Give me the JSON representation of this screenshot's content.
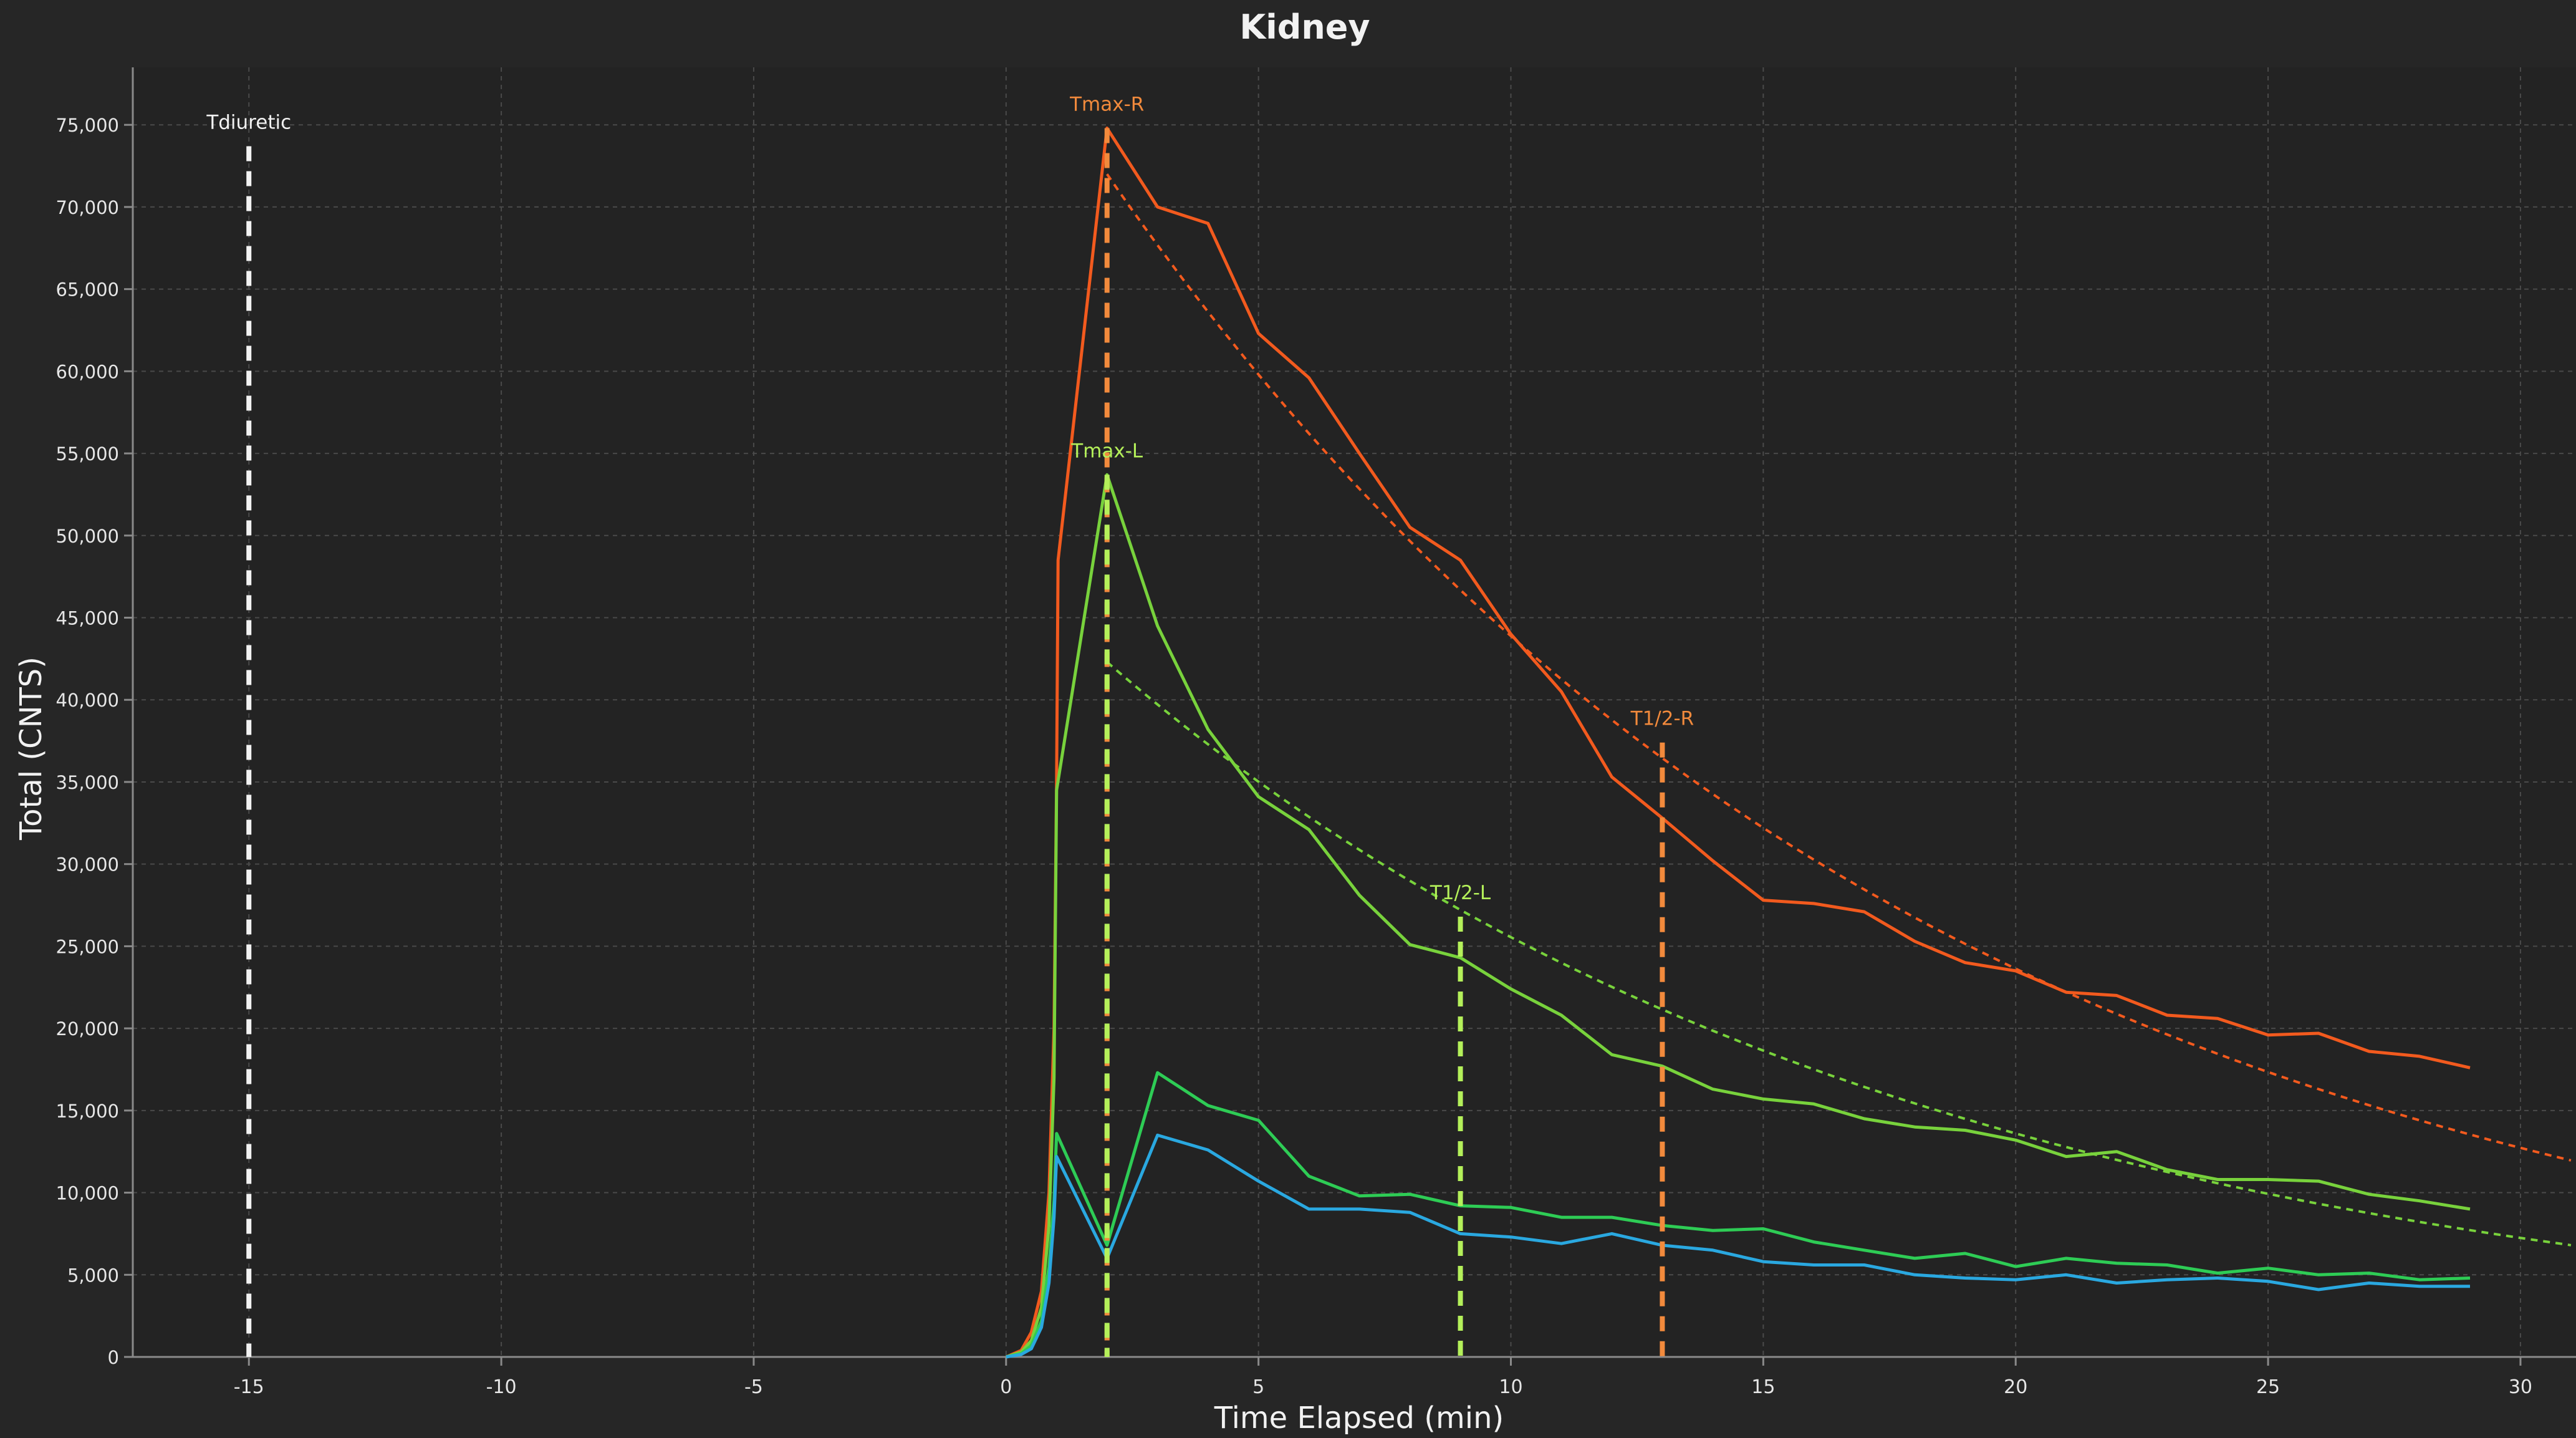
{
  "chart_data": {
    "type": "line",
    "title": "Kidney",
    "xlabel": "Time Elapsed (min)",
    "ylabel": "Total (CNTS)",
    "xlim": [
      -17.3,
      31.1
    ],
    "ylim": [
      0,
      78500
    ],
    "x_ticks": [
      -15,
      -10,
      -5,
      0,
      5,
      10,
      15,
      20,
      25,
      30
    ],
    "x_tick_labels": [
      "-15",
      "-10",
      "-5",
      "0",
      "5",
      "10",
      "15",
      "20",
      "25",
      "30"
    ],
    "y_ticks": [
      0,
      5000,
      10000,
      15000,
      20000,
      25000,
      30000,
      35000,
      40000,
      45000,
      50000,
      55000,
      60000,
      65000,
      70000,
      75000
    ],
    "y_tick_labels": [
      "0",
      "5,000",
      "10,000",
      "15,000",
      "20,000",
      "25,000",
      "30,000",
      "35,000",
      "40,000",
      "45,000",
      "50,000",
      "55,000",
      "60,000",
      "65,000",
      "70,000",
      "75,000"
    ],
    "grid": true,
    "colors": {
      "background": "#262626",
      "plot_background": "#232323",
      "grid": "#4a4a4a",
      "axis_text": "#e6e6e6",
      "right_kidney": "#f25a1e",
      "left_kidney": "#78d23c",
      "green_curve": "#2ecc55",
      "blue_curve": "#2aa8e0",
      "marker_white": "#f2f2f2",
      "marker_orange": "#f28a3c",
      "marker_lime": "#b4f05a"
    },
    "series": [
      {
        "key": "right",
        "color": "#f25a1e",
        "points": [
          [
            0,
            0
          ],
          [
            0.3,
            400
          ],
          [
            0.5,
            1500
          ],
          [
            0.7,
            4000
          ],
          [
            0.85,
            10000
          ],
          [
            0.95,
            20000
          ],
          [
            1.0,
            35000
          ],
          [
            1.03,
            48500
          ],
          [
            2,
            74800
          ],
          [
            3,
            70000
          ],
          [
            4,
            69000
          ],
          [
            5,
            62300
          ],
          [
            6,
            59600
          ],
          [
            7,
            55000
          ],
          [
            8,
            50500
          ],
          [
            9,
            48500
          ],
          [
            10,
            44000
          ],
          [
            11,
            40500
          ],
          [
            12,
            35300
          ],
          [
            13,
            32800
          ],
          [
            14,
            30200
          ],
          [
            15,
            27800
          ],
          [
            16,
            27600
          ],
          [
            17,
            27100
          ],
          [
            18,
            25300
          ],
          [
            19,
            24000
          ],
          [
            20,
            23500
          ],
          [
            21,
            22200
          ],
          [
            22,
            22000
          ],
          [
            23,
            20800
          ],
          [
            24,
            20600
          ],
          [
            25,
            19600
          ],
          [
            26,
            19700
          ],
          [
            27,
            18600
          ],
          [
            28,
            18300
          ],
          [
            29,
            17600
          ]
        ]
      },
      {
        "key": "left",
        "color": "#78d23c",
        "points": [
          [
            0,
            0
          ],
          [
            0.3,
            300
          ],
          [
            0.5,
            1000
          ],
          [
            0.7,
            3000
          ],
          [
            0.85,
            8000
          ],
          [
            0.95,
            17000
          ],
          [
            1.0,
            34500
          ],
          [
            2,
            53700
          ],
          [
            3,
            44500
          ],
          [
            4,
            38200
          ],
          [
            5,
            34100
          ],
          [
            6,
            32100
          ],
          [
            7,
            28100
          ],
          [
            8,
            25100
          ],
          [
            9,
            24300
          ],
          [
            10,
            22400
          ],
          [
            11,
            20800
          ],
          [
            12,
            18400
          ],
          [
            13,
            17700
          ],
          [
            14,
            16300
          ],
          [
            15,
            15700
          ],
          [
            16,
            15400
          ],
          [
            17,
            14500
          ],
          [
            18,
            14000
          ],
          [
            19,
            13800
          ],
          [
            20,
            13200
          ],
          [
            21,
            12200
          ],
          [
            22,
            12500
          ],
          [
            23,
            11400
          ],
          [
            24,
            10800
          ],
          [
            25,
            10800
          ],
          [
            26,
            10700
          ],
          [
            27,
            9900
          ],
          [
            28,
            9500
          ],
          [
            29,
            9000
          ]
        ]
      },
      {
        "key": "green",
        "color": "#2ecc55",
        "points": [
          [
            0,
            0
          ],
          [
            0.3,
            200
          ],
          [
            0.5,
            700
          ],
          [
            0.7,
            2200
          ],
          [
            0.85,
            5500
          ],
          [
            0.95,
            9500
          ],
          [
            1.0,
            13600
          ],
          [
            2,
            6800
          ],
          [
            3,
            17300
          ],
          [
            4,
            15300
          ],
          [
            5,
            14400
          ],
          [
            6,
            11000
          ],
          [
            7,
            9800
          ],
          [
            8,
            9900
          ],
          [
            9,
            9200
          ],
          [
            10,
            9100
          ],
          [
            11,
            8500
          ],
          [
            12,
            8500
          ],
          [
            13,
            8000
          ],
          [
            14,
            7700
          ],
          [
            15,
            7800
          ],
          [
            16,
            7000
          ],
          [
            17,
            6500
          ],
          [
            18,
            6000
          ],
          [
            19,
            6300
          ],
          [
            20,
            5500
          ],
          [
            21,
            6000
          ],
          [
            22,
            5700
          ],
          [
            23,
            5600
          ],
          [
            24,
            5100
          ],
          [
            25,
            5400
          ],
          [
            26,
            5000
          ],
          [
            27,
            5100
          ],
          [
            28,
            4700
          ],
          [
            29,
            4800
          ]
        ]
      },
      {
        "key": "blue",
        "color": "#2aa8e0",
        "points": [
          [
            0,
            0
          ],
          [
            0.3,
            150
          ],
          [
            0.5,
            500
          ],
          [
            0.7,
            1800
          ],
          [
            0.85,
            4500
          ],
          [
            0.95,
            8500
          ],
          [
            1.0,
            12200
          ],
          [
            2,
            6000
          ],
          [
            3,
            13500
          ],
          [
            4,
            12600
          ],
          [
            5,
            10700
          ],
          [
            6,
            9000
          ],
          [
            7,
            9000
          ],
          [
            8,
            8800
          ],
          [
            9,
            7500
          ],
          [
            10,
            7300
          ],
          [
            11,
            6900
          ],
          [
            12,
            7500
          ],
          [
            13,
            6800
          ],
          [
            14,
            6500
          ],
          [
            15,
            5800
          ],
          [
            16,
            5600
          ],
          [
            17,
            5600
          ],
          [
            18,
            5000
          ],
          [
            19,
            4800
          ],
          [
            20,
            4700
          ],
          [
            21,
            5000
          ],
          [
            22,
            4500
          ],
          [
            23,
            4700
          ],
          [
            24,
            4800
          ],
          [
            25,
            4600
          ],
          [
            26,
            4100
          ],
          [
            27,
            4500
          ],
          [
            28,
            4300
          ],
          [
            29,
            4300
          ]
        ]
      }
    ],
    "fits": [
      {
        "key": "right-fit",
        "color": "#f25a1e",
        "start_x": 2,
        "start_y": 72000,
        "half_life": 11.2
      },
      {
        "key": "left-fit",
        "color": "#78d23c",
        "start_x": 2,
        "start_y": 42300,
        "half_life": 11.0
      }
    ],
    "markers": [
      {
        "key": "tdiuretic",
        "label": "Tdiuretic",
        "x": -15,
        "top": 73700,
        "color": "#f2f2f2",
        "label_color": "#f2f2f2"
      },
      {
        "key": "tmax-r",
        "label": "Tmax-R",
        "x": 2,
        "top": 74800,
        "color": "#f28a3c",
        "label_color": "#f28a3c"
      },
      {
        "key": "tmax-l",
        "label": "Tmax-L",
        "x": 2,
        "top": 53700,
        "color": "#b4f05a",
        "label_color": "#b4f05a"
      },
      {
        "key": "t12-l",
        "label": "T1/2-L",
        "x": 9,
        "top": 26800,
        "color": "#b4f05a",
        "label_color": "#b4f05a"
      },
      {
        "key": "t12-r",
        "label": "T1/2-R",
        "x": 13,
        "top": 37400,
        "color": "#f28a3c",
        "label_color": "#f28a3c"
      }
    ]
  }
}
